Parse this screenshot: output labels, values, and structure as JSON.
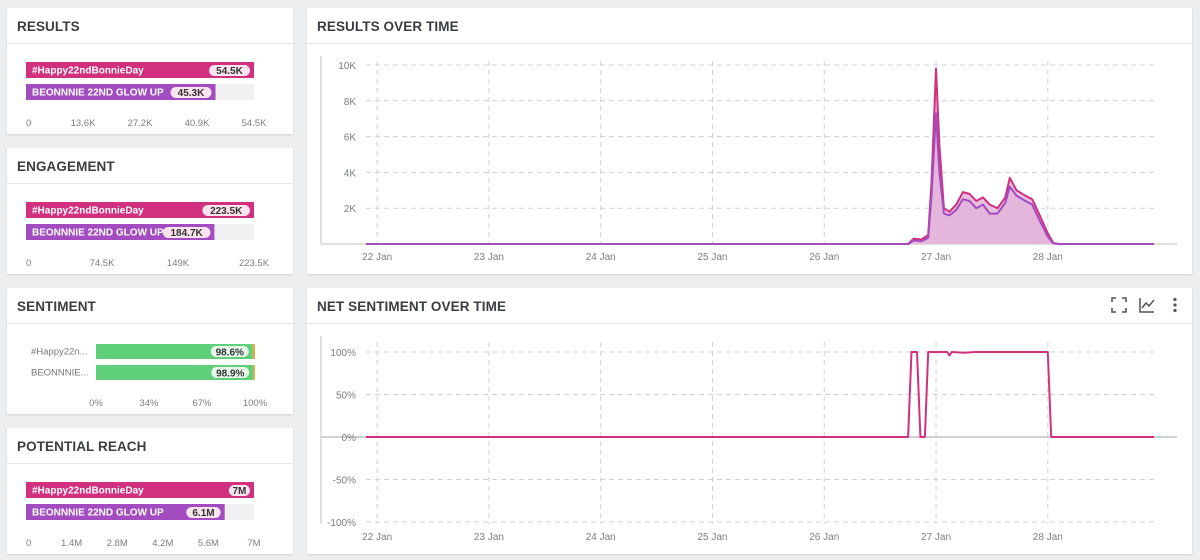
{
  "colors": {
    "pink": "#d1307f",
    "purple": "#a24cbf",
    "green": "#5fcf7a",
    "orange": "#f0a63c",
    "area": "#e3b4da",
    "grid": "#cfd1d5",
    "axis_text": "#7a7d82"
  },
  "results": {
    "title": "RESULTS",
    "bars": [
      {
        "label": "#Happy22ndBonnieDay",
        "value": 54.5,
        "value_label": "54.5K",
        "color": "#d1307f"
      },
      {
        "label": "BEONNNIE 22ND GLOW UP",
        "value": 45.3,
        "value_label": "45.3K",
        "color": "#a24cbf"
      }
    ],
    "max": 54.5,
    "ticks": [
      "0",
      "13.6K",
      "27.2K",
      "40.9K",
      "54.5K"
    ]
  },
  "engagement": {
    "title": "ENGAGEMENT",
    "bars": [
      {
        "label": "#Happy22ndBonnieDay",
        "value": 223.5,
        "value_label": "223.5K",
        "color": "#d1307f"
      },
      {
        "label": "BEONNNIE 22ND GLOW UP",
        "value": 184.7,
        "value_label": "184.7K",
        "color": "#a24cbf"
      }
    ],
    "max": 223.5,
    "ticks": [
      "0",
      "74.5K",
      "149K",
      "223.5K"
    ]
  },
  "sentiment": {
    "title": "SENTIMENT",
    "rows": [
      {
        "label": "#Happy22n...",
        "positive": 98.6,
        "value_label": "98.6%"
      },
      {
        "label": "BEONNNIE...",
        "positive": 98.9,
        "value_label": "98.9%"
      }
    ],
    "ticks": [
      "0%",
      "34%",
      "67%",
      "100%"
    ]
  },
  "reach": {
    "title": "POTENTIAL REACH",
    "bars": [
      {
        "label": "#Happy22ndBonnieDay",
        "value": 7,
        "value_label": "7M",
        "color": "#d1307f"
      },
      {
        "label": "BEONNNIE 22ND GLOW UP",
        "value": 6.1,
        "value_label": "6.1M",
        "color": "#a24cbf"
      }
    ],
    "max": 7,
    "ticks": [
      "0",
      "1.4M",
      "2.8M",
      "4.2M",
      "5.6M",
      "7M"
    ]
  },
  "chart_data": [
    {
      "type": "bar",
      "title": "RESULTS",
      "categories": [
        "#Happy22ndBonnieDay",
        "BEONNNIE 22ND GLOW UP"
      ],
      "values": [
        54500,
        45300
      ],
      "xlim": [
        0,
        54500
      ]
    },
    {
      "type": "bar",
      "title": "ENGAGEMENT",
      "categories": [
        "#Happy22ndBonnieDay",
        "BEONNNIE 22ND GLOW UP"
      ],
      "values": [
        223500,
        184700
      ],
      "xlim": [
        0,
        223500
      ]
    },
    {
      "type": "bar",
      "title": "SENTIMENT",
      "categories": [
        "#Happy22n...",
        "BEONNNIE..."
      ],
      "values": [
        98.6,
        98.9
      ],
      "xlim": [
        0,
        100
      ]
    },
    {
      "type": "bar",
      "title": "POTENTIAL REACH",
      "categories": [
        "#Happy22ndBonnieDay",
        "BEONNNIE 22ND GLOW UP"
      ],
      "values": [
        7000000,
        6100000
      ],
      "xlim": [
        0,
        7000000
      ]
    },
    {
      "type": "area",
      "title": "RESULTS OVER TIME",
      "x_ticks": [
        "22 Jan",
        "23 Jan",
        "24 Jan",
        "25 Jan",
        "26 Jan",
        "27 Jan",
        "28 Jan"
      ],
      "y_ticks": [
        "2K",
        "4K",
        "6K",
        "8K",
        "10K"
      ],
      "ylim": [
        0,
        10500
      ],
      "x_range": [
        21.9,
        28.95
      ],
      "series": [
        {
          "color": "#d1307f",
          "points": [
            [
              21.9,
              0
            ],
            [
              26.75,
              0
            ],
            [
              26.8,
              300
            ],
            [
              26.87,
              250
            ],
            [
              26.93,
              500
            ],
            [
              26.96,
              3500
            ],
            [
              27.0,
              9800
            ],
            [
              27.03,
              5500
            ],
            [
              27.07,
              2000
            ],
            [
              27.12,
              1800
            ],
            [
              27.18,
              2200
            ],
            [
              27.24,
              2900
            ],
            [
              27.3,
              2800
            ],
            [
              27.36,
              2400
            ],
            [
              27.42,
              2600
            ],
            [
              27.48,
              2200
            ],
            [
              27.55,
              2000
            ],
            [
              27.62,
              2600
            ],
            [
              27.66,
              3700
            ],
            [
              27.72,
              3000
            ],
            [
              27.8,
              2700
            ],
            [
              27.86,
              2500
            ],
            [
              27.92,
              1700
            ],
            [
              28.0,
              600
            ],
            [
              28.05,
              50
            ],
            [
              28.1,
              0
            ],
            [
              28.95,
              0
            ]
          ]
        },
        {
          "color": "#a24cbf",
          "points": [
            [
              21.9,
              0
            ],
            [
              26.75,
              0
            ],
            [
              26.8,
              200
            ],
            [
              26.87,
              150
            ],
            [
              26.93,
              350
            ],
            [
              26.96,
              2800
            ],
            [
              27.0,
              7300
            ],
            [
              27.03,
              4000
            ],
            [
              27.07,
              1700
            ],
            [
              27.12,
              1600
            ],
            [
              27.18,
              1900
            ],
            [
              27.24,
              2500
            ],
            [
              27.3,
              2400
            ],
            [
              27.36,
              2000
            ],
            [
              27.42,
              2200
            ],
            [
              27.48,
              1700
            ],
            [
              27.55,
              1700
            ],
            [
              27.62,
              2300
            ],
            [
              27.66,
              3200
            ],
            [
              27.72,
              2700
            ],
            [
              27.8,
              2400
            ],
            [
              27.86,
              2200
            ],
            [
              27.92,
              1400
            ],
            [
              28.0,
              400
            ],
            [
              28.05,
              30
            ],
            [
              28.1,
              0
            ],
            [
              28.95,
              0
            ]
          ]
        }
      ]
    },
    {
      "type": "line",
      "title": "NET SENTIMENT OVER TIME",
      "x_ticks": [
        "22 Jan",
        "23 Jan",
        "24 Jan",
        "25 Jan",
        "26 Jan",
        "27 Jan",
        "28 Jan"
      ],
      "y_ticks": [
        "100%",
        "50%",
        "0%",
        "-50%",
        "-100%"
      ],
      "ylim": [
        -100,
        100
      ],
      "x_range": [
        21.9,
        28.95
      ],
      "series": [
        {
          "color": "#d1307f",
          "points": [
            [
              21.9,
              0
            ],
            [
              26.75,
              0
            ],
            [
              26.78,
              100
            ],
            [
              26.83,
              100
            ],
            [
              26.86,
              0
            ],
            [
              26.9,
              0
            ],
            [
              26.93,
              100
            ],
            [
              27.1,
              100
            ],
            [
              27.12,
              96
            ],
            [
              27.14,
              100
            ],
            [
              27.25,
              99
            ],
            [
              27.35,
              100
            ],
            [
              28.0,
              100
            ],
            [
              28.03,
              0
            ],
            [
              28.95,
              0
            ]
          ]
        }
      ]
    }
  ],
  "over_time": {
    "title": "RESULTS OVER TIME"
  },
  "net_sentiment": {
    "title": "NET SENTIMENT OVER TIME"
  },
  "icons": {
    "expand": "expand-icon",
    "chart": "line-chart-icon",
    "menu": "more-vert-icon"
  }
}
